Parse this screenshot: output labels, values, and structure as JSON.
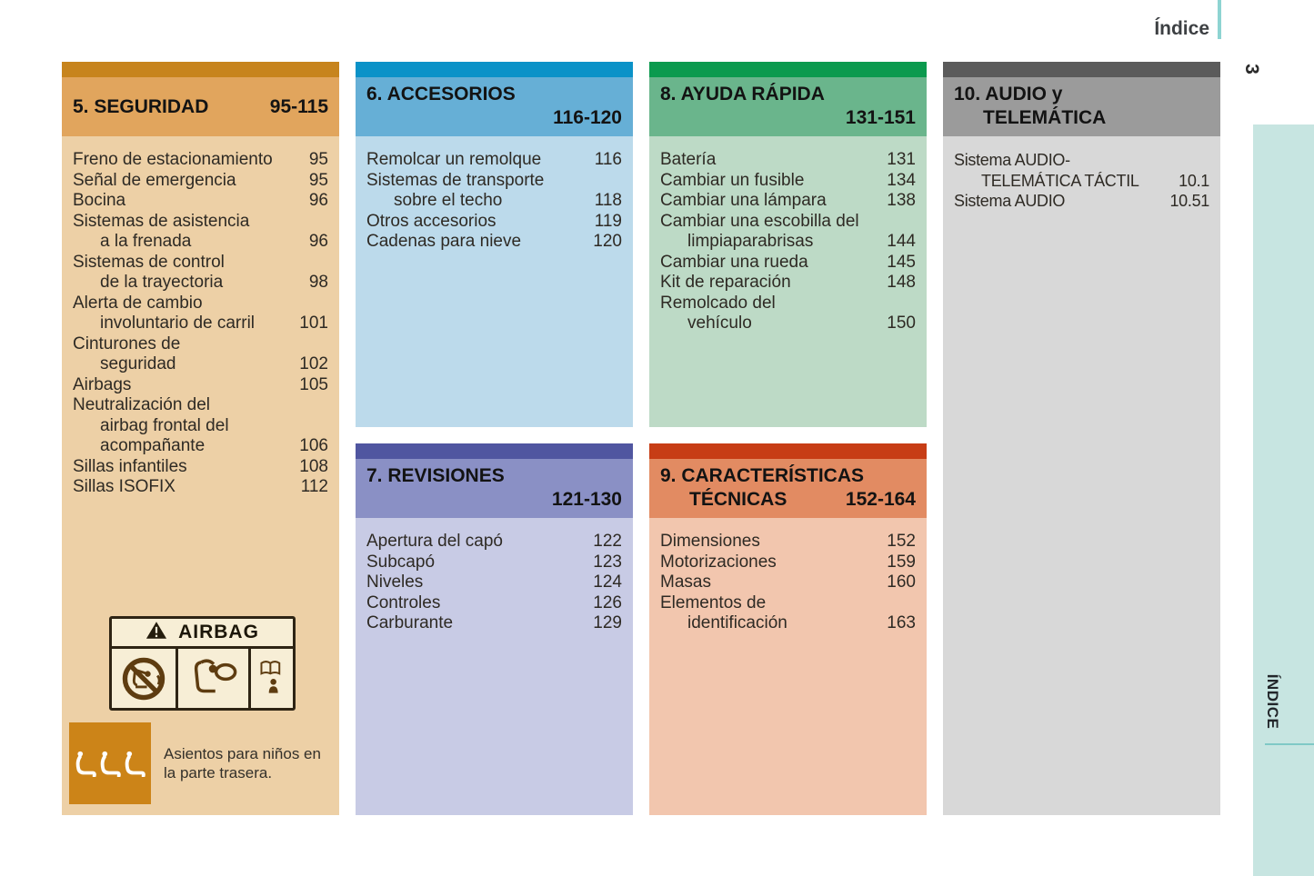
{
  "page": {
    "index_label": "Índice",
    "page_number": "3",
    "sidebar_label": "ÍNDICE",
    "accent_teal": "#8ed4d2",
    "sidebar_teal": "#c7e5e1"
  },
  "sections": [
    {
      "id": "seguridad",
      "colors": {
        "strip": "#c7841d",
        "header": "#e1a55d",
        "body": "#edd0a6"
      },
      "header_lines": [
        {
          "left": "5. SEGURIDAD",
          "right": "95-115"
        }
      ],
      "items": [
        {
          "lines": [
            "Freno de estacionamiento"
          ],
          "page": "95"
        },
        {
          "lines": [
            "Señal de emergencia"
          ],
          "page": "95"
        },
        {
          "lines": [
            "Bocina"
          ],
          "page": "96"
        },
        {
          "lines": [
            "Sistemas de asistencia",
            "a la frenada"
          ],
          "page": "96"
        },
        {
          "lines": [
            "Sistemas de control",
            "de la trayectoria"
          ],
          "page": "98"
        },
        {
          "lines": [
            "Alerta de cambio",
            "involuntario de carril"
          ],
          "page": "101"
        },
        {
          "lines": [
            "Cinturones de",
            "seguridad"
          ],
          "page": "102"
        },
        {
          "lines": [
            "Airbags"
          ],
          "page": "105"
        },
        {
          "lines": [
            "Neutralización del",
            "airbag frontal del",
            "acompañante"
          ],
          "page": "106"
        },
        {
          "lines": [
            "Sillas infantiles"
          ],
          "page": "108"
        },
        {
          "lines": [
            "Sillas ISOFIX"
          ],
          "page": "112"
        }
      ],
      "extras": {
        "airbag_title": "AIRBAG",
        "note_lines": [
          "Asientos para niños en",
          "la parte trasera."
        ],
        "note_square_color": "#cc8418"
      }
    },
    {
      "id": "accesorios",
      "colors": {
        "strip": "#0a92c8",
        "header": "#66afd6",
        "body": "#bcdaeb"
      },
      "header_lines": [
        {
          "left": "6. ACCESORIOS"
        },
        {
          "right": "116-120"
        }
      ],
      "items": [
        {
          "lines": [
            "Remolcar un remolque"
          ],
          "page": "116"
        },
        {
          "lines": [
            "Sistemas de transporte",
            "sobre el techo"
          ],
          "page": "118"
        },
        {
          "lines": [
            "Otros accesorios"
          ],
          "page": "119"
        },
        {
          "lines": [
            "Cadenas para nieve"
          ],
          "page": "120"
        }
      ]
    },
    {
      "id": "revisiones",
      "colors": {
        "strip": "#5056a0",
        "header": "#8a90c5",
        "body": "#c8cbe5"
      },
      "header_lines": [
        {
          "left": "7. REVISIONES"
        },
        {
          "right": "121-130"
        }
      ],
      "items": [
        {
          "lines": [
            "Apertura del capó"
          ],
          "page": "122"
        },
        {
          "lines": [
            "Subcapó"
          ],
          "page": "123"
        },
        {
          "lines": [
            "Niveles"
          ],
          "page": "124"
        },
        {
          "lines": [
            "Controles"
          ],
          "page": "126"
        },
        {
          "lines": [
            "Carburante"
          ],
          "page": "129"
        }
      ]
    },
    {
      "id": "ayuda",
      "colors": {
        "strip": "#0b9a4e",
        "header": "#6ab58c",
        "body": "#bddac6"
      },
      "header_lines": [
        {
          "left": "8. AYUDA RÁPIDA"
        },
        {
          "right": "131-151"
        }
      ],
      "items": [
        {
          "lines": [
            "Batería"
          ],
          "page": "131"
        },
        {
          "lines": [
            "Cambiar un fusible"
          ],
          "page": "134"
        },
        {
          "lines": [
            "Cambiar una lámpara"
          ],
          "page": "138"
        },
        {
          "lines": [
            "Cambiar una escobilla del",
            "limpiaparabrisas"
          ],
          "page": "144"
        },
        {
          "lines": [
            "Cambiar una rueda"
          ],
          "page": "145"
        },
        {
          "lines": [
            "Kit de reparación"
          ],
          "page": "148"
        },
        {
          "lines": [
            "Remolcado del",
            "vehículo"
          ],
          "page": "150"
        }
      ]
    },
    {
      "id": "caracteristicas",
      "colors": {
        "strip": "#c73d15",
        "header": "#e28b62",
        "body": "#f2c6ae"
      },
      "header_lines": [
        {
          "left": "9. CARACTERÍSTICAS"
        },
        {
          "left": "TÉCNICAS",
          "indent": true,
          "right": "152-164"
        }
      ],
      "items": [
        {
          "lines": [
            "Dimensiones"
          ],
          "page": "152"
        },
        {
          "lines": [
            "Motorizaciones"
          ],
          "page": "159"
        },
        {
          "lines": [
            "Masas"
          ],
          "page": "160"
        },
        {
          "lines": [
            "Elementos de",
            "identificación"
          ],
          "page": "163"
        }
      ]
    },
    {
      "id": "audio",
      "colors": {
        "strip": "#5b5b5b",
        "header": "#9b9b9b",
        "body": "#d8d8d8"
      },
      "header_lines": [
        {
          "left": "10. AUDIO y"
        },
        {
          "left": "TELEMÁTICA",
          "indent": true
        }
      ],
      "items": [
        {
          "lines": [
            "Sistema AUDIO-",
            "TELEMÁTICA TÁCTIL"
          ],
          "page": "10.1"
        },
        {
          "lines": [
            "Sistema AUDIO"
          ],
          "page": "10.51"
        }
      ]
    }
  ]
}
